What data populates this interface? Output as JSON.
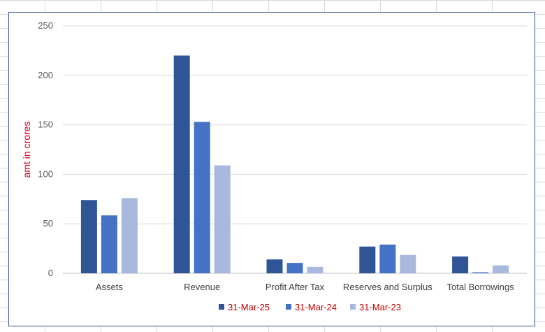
{
  "chart_data": {
    "type": "bar",
    "title": "",
    "xlabel": "",
    "ylabel": "amt in crores",
    "ylabel_color": "#e0001b",
    "ylim": [
      0,
      250
    ],
    "yticks": [
      0,
      50,
      100,
      150,
      200,
      250
    ],
    "grid": true,
    "legend_position": "bottom",
    "legend_text_color": "#c00000",
    "categories": [
      "Assets",
      "Revenue",
      "Profit After Tax",
      "Reserves and Surplus",
      "Total Borrowings"
    ],
    "series": [
      {
        "name": "31-Mar-25",
        "color": "#2f5597",
        "values": [
          74,
          220,
          14,
          27,
          17
        ]
      },
      {
        "name": "31-Mar-24",
        "color": "#4472c4",
        "values": [
          58.5,
          153,
          10.5,
          29,
          1
        ]
      },
      {
        "name": "31-Mar-23",
        "color": "#a9b8de",
        "values": [
          76,
          109,
          6.5,
          18.5,
          8
        ]
      }
    ]
  }
}
